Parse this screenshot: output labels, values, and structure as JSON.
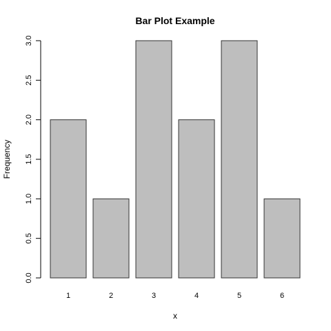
{
  "chart_data": {
    "type": "bar",
    "title": "Bar Plot Example",
    "xlabel": "x",
    "ylabel": "Frequency",
    "categories": [
      "1",
      "2",
      "3",
      "4",
      "5",
      "6"
    ],
    "values": [
      2,
      1,
      3,
      2,
      3,
      1
    ],
    "ylim": [
      0,
      3
    ],
    "yticks": [
      "0.0",
      "0.5",
      "1.0",
      "1.5",
      "2.0",
      "2.5",
      "3.0"
    ],
    "bar_color": "#bebebe",
    "bar_border_color": "#333333",
    "grid": false,
    "legend": "none"
  }
}
